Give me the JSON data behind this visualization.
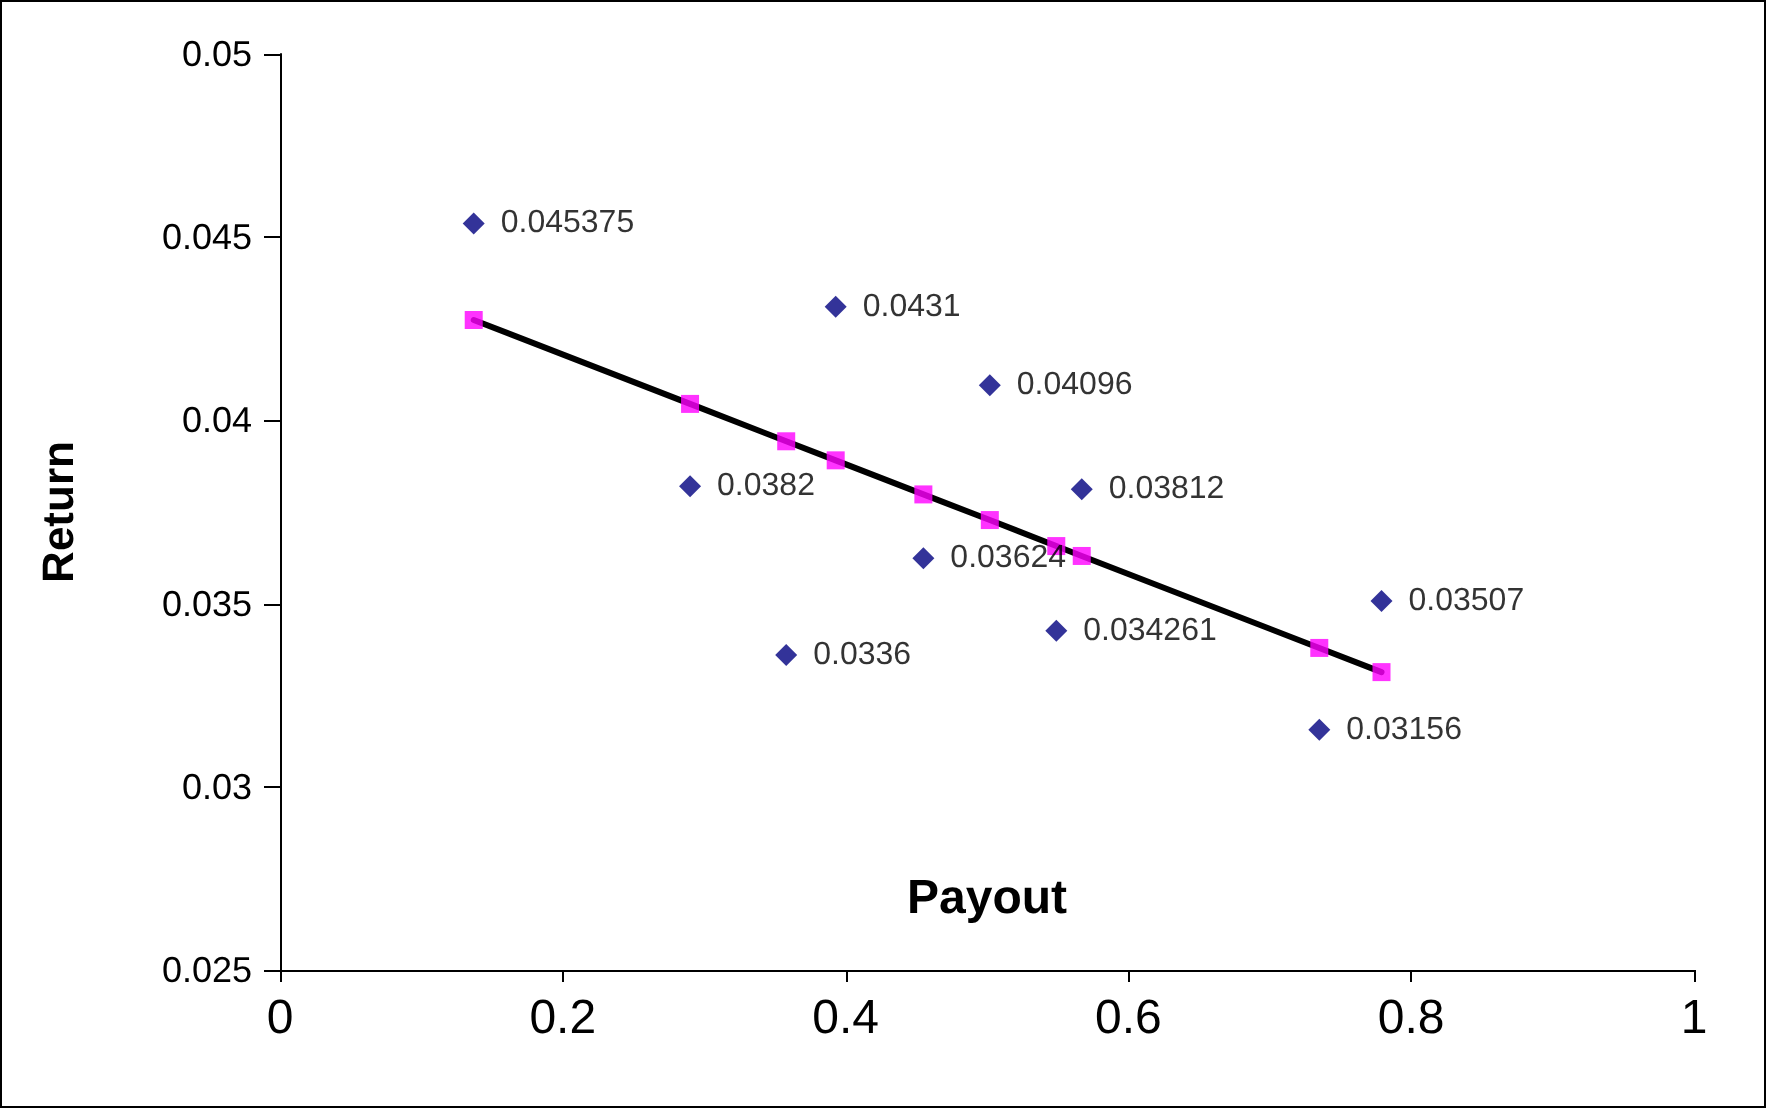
{
  "chart_data": {
    "type": "scatter",
    "xlabel": "Payout",
    "ylabel": "Return",
    "xlim": [
      0,
      1
    ],
    "xticks": [
      0,
      0.2,
      0.4,
      0.6,
      0.8,
      1
    ],
    "ylim": [
      0.025,
      0.05
    ],
    "yticks": [
      0.025,
      0.03,
      0.035,
      0.04,
      0.045,
      0.05
    ],
    "grid": false,
    "series": [
      {
        "color": "#000080",
        "marker": "diamond",
        "data_labels": true,
        "x": [
          0.137,
          0.393,
          0.502,
          0.29,
          0.567,
          0.455,
          0.358,
          0.549,
          0.779,
          0.735
        ],
        "values": [
          0.045375,
          0.0431,
          0.04096,
          0.0382,
          0.03812,
          0.03624,
          0.0336,
          0.034261,
          0.03507,
          0.03156
        ]
      },
      {
        "type": "line",
        "color": "#000000",
        "marker": "none",
        "line_style": "solid",
        "x": [
          0.137,
          0.29,
          0.358,
          0.393,
          0.455,
          0.502,
          0.549,
          0.567,
          0.735,
          0.779
        ],
        "values": [
          0.04274,
          0.04045,
          0.03943,
          0.03891,
          0.03798,
          0.03728,
          0.03657,
          0.0363,
          0.03379,
          0.03313
        ]
      },
      {
        "color": "#ff00ff",
        "marker": "square",
        "x": [
          0.137,
          0.29,
          0.358,
          0.393,
          0.455,
          0.502,
          0.549,
          0.567,
          0.735,
          0.779
        ],
        "values": [
          0.04274,
          0.04045,
          0.03943,
          0.03891,
          0.03798,
          0.03728,
          0.03657,
          0.0363,
          0.03379,
          0.03313
        ]
      }
    ]
  }
}
